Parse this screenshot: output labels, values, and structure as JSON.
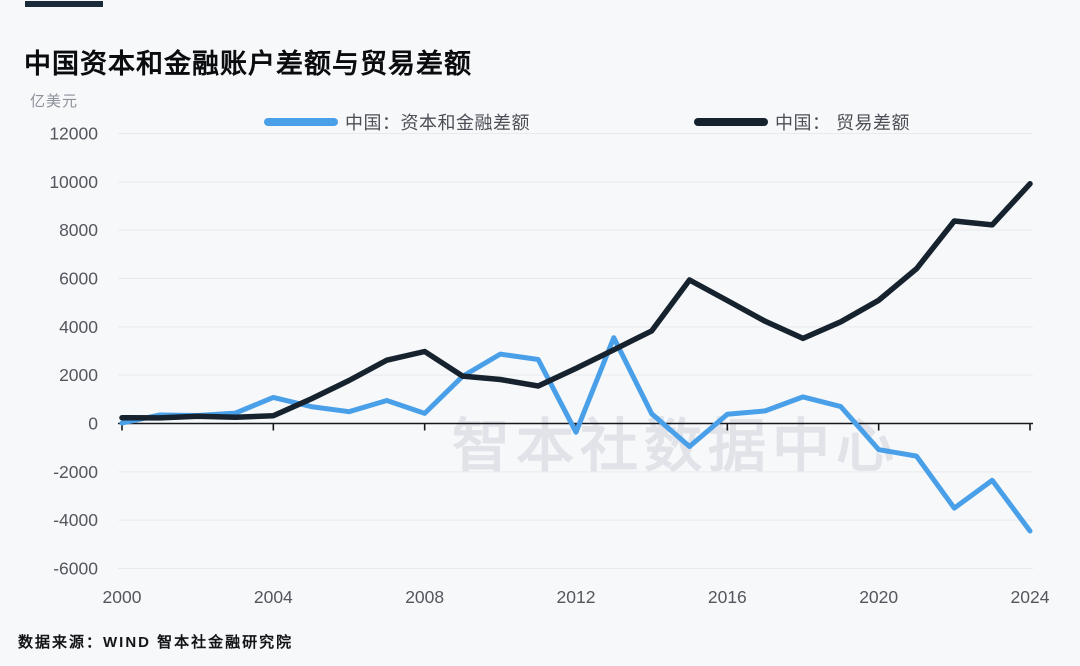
{
  "page": {
    "background_color": "#f7f8fa",
    "watermark_text": "智本社数据中心"
  },
  "header": {
    "title": "中国资本和金融账户差额与贸易差额",
    "accent_color": "#1c2b3a"
  },
  "axis_unit_label": "亿美元",
  "legend": {
    "items": [
      {
        "label": "中国：资本和金融差额",
        "color": "#4aa0e8"
      },
      {
        "label": "中国： 贸易差额",
        "color": "#16222e"
      }
    ]
  },
  "footer": {
    "source_text": "数据来源：WIND 智本社金融研究院"
  },
  "chart_data": {
    "type": "line",
    "title": "中国资本和金融账户差额与贸易差额",
    "xlabel": "",
    "ylabel": "亿美元",
    "x": [
      2000,
      2001,
      2002,
      2003,
      2004,
      2005,
      2006,
      2007,
      2008,
      2009,
      2010,
      2011,
      2012,
      2013,
      2014,
      2015,
      2016,
      2017,
      2018,
      2019,
      2020,
      2021,
      2022,
      2023,
      2024
    ],
    "series": [
      {
        "name": "中国：资本和金融差额",
        "color": "#4aa0e8",
        "stroke_width": 5,
        "values": [
          20,
          350,
          330,
          430,
          1080,
          700,
          490,
          950,
          420,
          1950,
          2870,
          2650,
          -360,
          3550,
          400,
          -950,
          380,
          520,
          1100,
          700,
          -1080,
          -1350,
          -3500,
          -2350,
          -4450
        ]
      },
      {
        "name": "中国：贸易差额",
        "color": "#16222e",
        "stroke_width": 5.5,
        "values": [
          240,
          230,
          300,
          260,
          320,
          1020,
          1780,
          2620,
          2980,
          1960,
          1820,
          1550,
          2280,
          3050,
          3830,
          5940,
          5090,
          4230,
          3520,
          4210,
          5100,
          6400,
          8380,
          8220,
          9920
        ]
      }
    ],
    "ylim": [
      -6000,
      12000
    ],
    "yticks": [
      12000,
      10000,
      8000,
      6000,
      4000,
      2000,
      0,
      -2000,
      -4000,
      -6000
    ],
    "xticks": [
      2000,
      2004,
      2008,
      2012,
      2016,
      2020,
      2024
    ],
    "grid": true,
    "legend_position": "top",
    "axis_color": "#17191c",
    "grid_color": "#e8eaee",
    "tick_label_color": "#53575d"
  }
}
